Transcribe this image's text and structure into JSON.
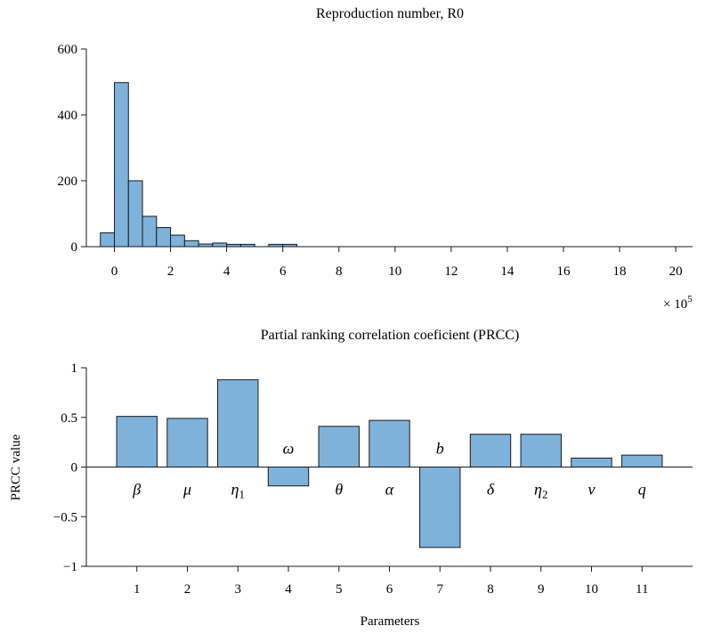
{
  "colors": {
    "bar_fill": "#7eb2da",
    "bar_stroke": "#1a1a1a",
    "axis": "#1a1a1a"
  },
  "chart_data": [
    {
      "type": "bar",
      "title": "Reproduction number, R0",
      "xlabel": "",
      "ylabel": "",
      "x_multiplier": "× 10^5",
      "x_multiplier_base": "× 10",
      "x_multiplier_exp": "5",
      "xlim": [
        -1,
        20.6
      ],
      "ylim": [
        0,
        600
      ],
      "x_ticks": [
        0,
        2,
        4,
        6,
        8,
        10,
        12,
        14,
        16,
        18,
        20
      ],
      "x_tick_labels": [
        "0",
        "2",
        "4",
        "6",
        "8",
        "10",
        "12",
        "14",
        "16",
        "18",
        "20"
      ],
      "y_ticks": [
        0,
        200,
        400,
        600
      ],
      "y_tick_labels": [
        "0",
        "200",
        "400",
        "600"
      ],
      "bin_width": 0.5,
      "bins": [
        {
          "x_start": -0.5,
          "count": 42
        },
        {
          "x_start": 0.0,
          "count": 498
        },
        {
          "x_start": 0.5,
          "count": 200
        },
        {
          "x_start": 1.0,
          "count": 92
        },
        {
          "x_start": 1.5,
          "count": 58
        },
        {
          "x_start": 2.0,
          "count": 35
        },
        {
          "x_start": 2.5,
          "count": 18
        },
        {
          "x_start": 3.0,
          "count": 8
        },
        {
          "x_start": 3.5,
          "count": 11
        },
        {
          "x_start": 4.0,
          "count": 7
        },
        {
          "x_start": 4.5,
          "count": 7
        },
        {
          "x_start": 5.5,
          "count": 7
        },
        {
          "x_start": 6.0,
          "count": 7
        }
      ]
    },
    {
      "type": "bar",
      "title": "Partial ranking correlation coeficient (PRCC)",
      "xlabel": "Parameters",
      "ylabel": "PRCC value",
      "xlim": [
        0,
        12
      ],
      "ylim": [
        -1,
        1
      ],
      "categories": [
        "1",
        "2",
        "3",
        "4",
        "5",
        "6",
        "7",
        "8",
        "9",
        "10",
        "11"
      ],
      "values": [
        0.51,
        0.49,
        0.88,
        -0.19,
        0.41,
        0.47,
        -0.81,
        0.33,
        0.33,
        0.09,
        0.12
      ],
      "parameter_labels": [
        {
          "main": "β",
          "sub": ""
        },
        {
          "main": "μ",
          "sub": ""
        },
        {
          "main": "η",
          "sub": "1"
        },
        {
          "main": "ω",
          "sub": ""
        },
        {
          "main": "θ",
          "sub": ""
        },
        {
          "main": "α",
          "sub": ""
        },
        {
          "main": "b",
          "sub": ""
        },
        {
          "main": "δ",
          "sub": ""
        },
        {
          "main": "η",
          "sub": "2"
        },
        {
          "main": "ν",
          "sub": ""
        },
        {
          "main": "q",
          "sub": ""
        }
      ],
      "y_ticks": [
        -1,
        -0.5,
        0,
        0.5,
        1
      ],
      "y_tick_labels": [
        "−1",
        "−0.5",
        "0",
        "0.5",
        "1"
      ]
    }
  ]
}
